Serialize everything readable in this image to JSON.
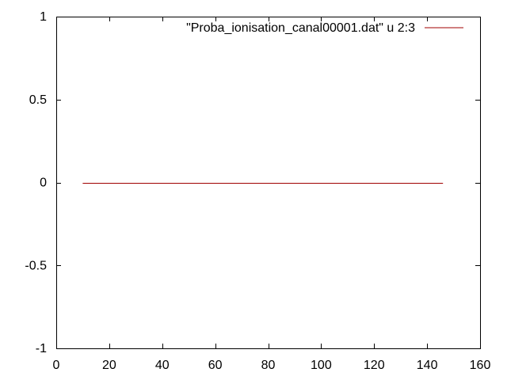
{
  "chart_data": {
    "type": "line",
    "title": "",
    "xlabel": "",
    "ylabel": "",
    "xlim": [
      0,
      160
    ],
    "ylim": [
      -1,
      1
    ],
    "x_ticks": [
      0,
      20,
      40,
      60,
      80,
      100,
      120,
      140,
      160
    ],
    "y_ticks": [
      -1,
      -0.5,
      0,
      0.5,
      1
    ],
    "x_tick_labels": [
      "0",
      "20",
      "40",
      "60",
      "80",
      "100",
      "120",
      "140",
      "160"
    ],
    "y_tick_labels": [
      "-1",
      "-0.5",
      "0",
      "0.5",
      "1"
    ],
    "grid": false,
    "legend_position": "top-right",
    "series": [
      {
        "name": "\"Proba_ionisation_canal00001.dat\" u 2:3",
        "color": "#a00000",
        "x": [
          10,
          146
        ],
        "y": [
          0,
          0
        ]
      }
    ]
  }
}
